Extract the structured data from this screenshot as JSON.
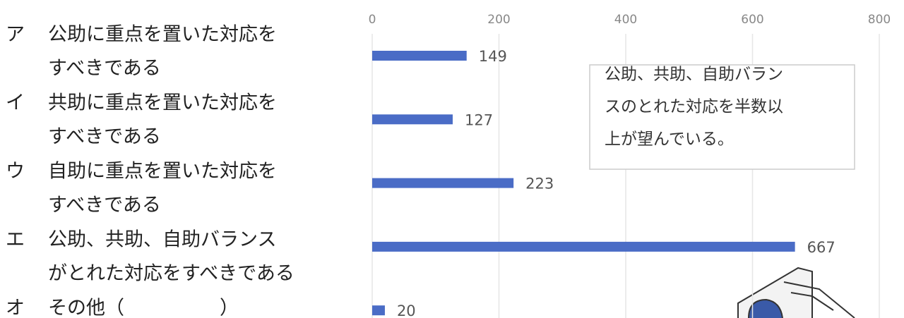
{
  "chart_data": {
    "type": "bar",
    "orientation": "horizontal",
    "categories": [
      [
        "ア",
        "公助に重点を置いた対応を",
        "すべきである"
      ],
      [
        "イ",
        "共助に重点を置いた対応を",
        "すべきである"
      ],
      [
        "ウ",
        "自助に重点を置いた対応を",
        "すべきである"
      ],
      [
        "エ",
        "公助、共助、自助バランス",
        "がとれた対応をすべきである"
      ],
      [
        "オ",
        "その他（　　　　　）"
      ]
    ],
    "values": [
      149,
      127,
      223,
      667,
      20
    ],
    "color": "#4a6cc6",
    "xlim": [
      0,
      800
    ],
    "xticks": [
      0,
      200,
      400,
      600,
      800
    ],
    "grid": true,
    "annotation": [
      "公助、共助、自助バラン",
      "スのとれた対応を半数以",
      "上が望んでいる。"
    ]
  }
}
